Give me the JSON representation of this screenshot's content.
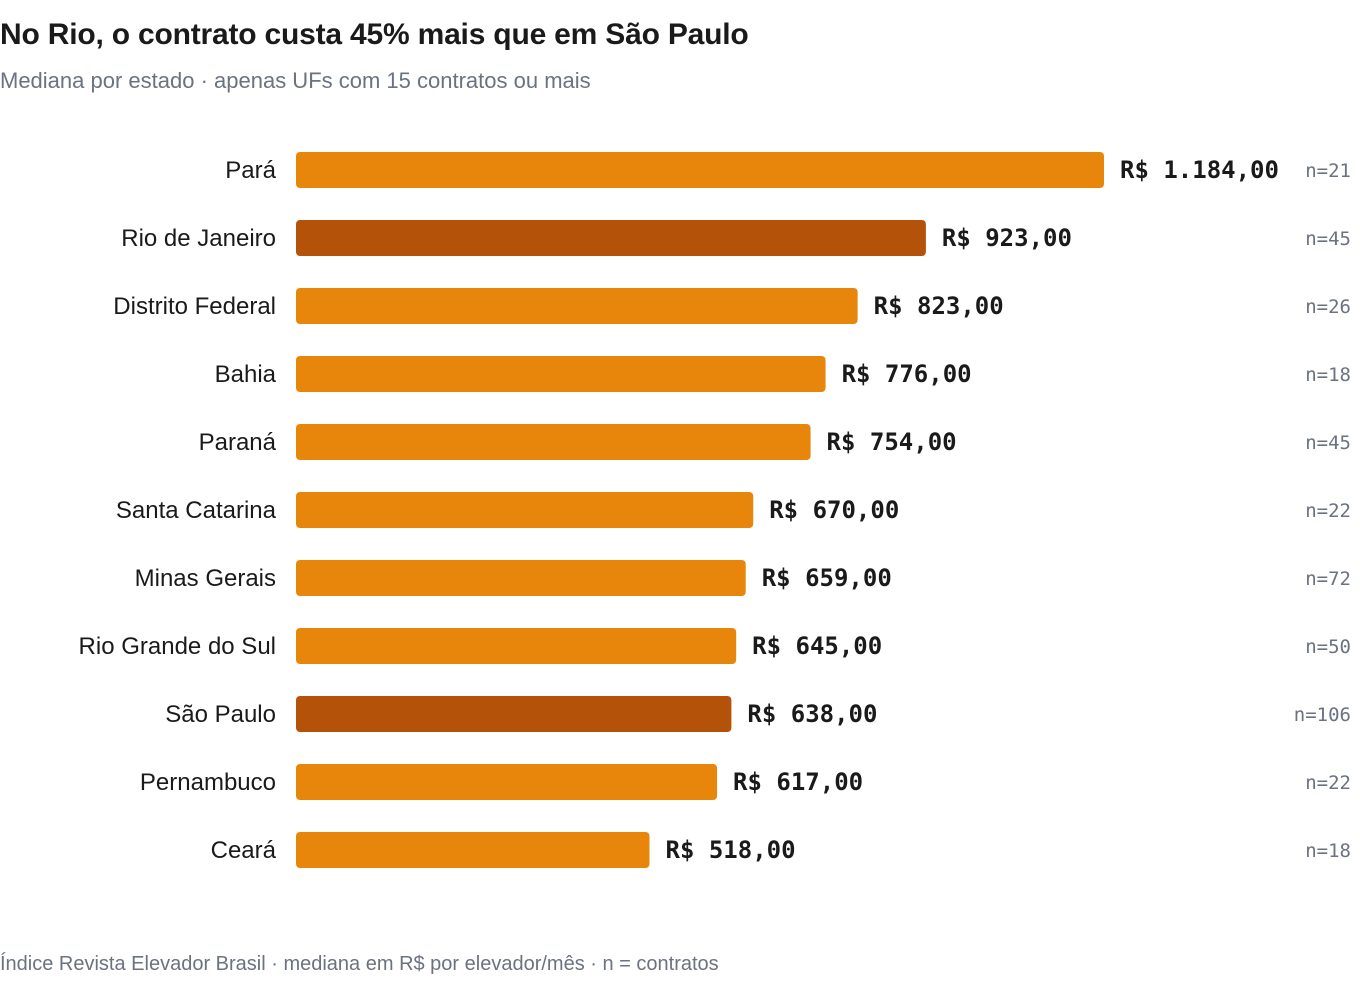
{
  "title": "No Rio, o contrato custa 45% mais que em São Paulo",
  "subtitle": "Mediana por estado · apenas UFs com 15 contratos ou mais",
  "footer": "Índice Revista Elevador Brasil · mediana em R$ por elevador/mês · n = contratos",
  "colors": {
    "bar": "#e8860c",
    "highlight": "#b5520a",
    "label": "#1a1a1a",
    "muted": "#6b7280"
  },
  "chart_data": {
    "type": "bar",
    "orientation": "horizontal",
    "categories": [
      "Pará",
      "Rio de Janeiro",
      "Distrito Federal",
      "Bahia",
      "Paraná",
      "Santa Catarina",
      "Minas Gerais",
      "Rio Grande do Sul",
      "São Paulo",
      "Pernambuco",
      "Ceará"
    ],
    "values": [
      1184,
      923,
      823,
      776,
      754,
      670,
      659,
      645,
      638,
      617,
      518
    ],
    "value_labels": [
      "R$ 1.184,00",
      "R$ 923,00",
      "R$ 823,00",
      "R$ 776,00",
      "R$ 754,00",
      "R$ 670,00",
      "R$ 659,00",
      "R$ 645,00",
      "R$ 638,00",
      "R$ 617,00",
      "R$ 518,00"
    ],
    "counts": [
      "n=21",
      "n=45",
      "n=26",
      "n=18",
      "n=45",
      "n=22",
      "n=72",
      "n=50",
      "n=106",
      "n=22",
      "n=18"
    ],
    "highlighted": [
      "Rio de Janeiro",
      "São Paulo"
    ],
    "xlim": [
      0,
      1184
    ],
    "grid": false
  }
}
